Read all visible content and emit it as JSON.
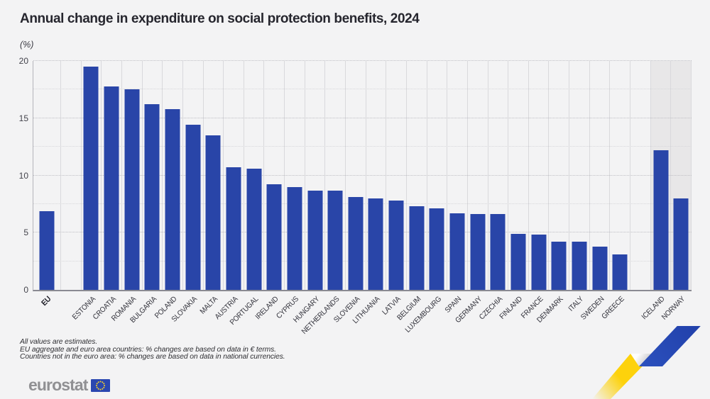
{
  "title": "Annual change in expenditure on social protection benefits, 2024",
  "unit_label": "(%)",
  "footnotes": [
    "All values are estimates.",
    "EU aggregate and euro area countries: % changes are based on data in € terms.",
    "Countries not in the euro area: % changes are based on data in national currencies."
  ],
  "logo": {
    "text": "eurostat"
  },
  "brand": {
    "accent_blue": "#2447ae",
    "accent_yellow": "#fdd20c"
  },
  "chart_data": {
    "type": "bar",
    "title": "Annual change in expenditure on social protection benefits, 2024",
    "xlabel": "",
    "ylabel": "(%)",
    "ylim": [
      0,
      20
    ],
    "yticks": [
      0,
      5,
      10,
      15,
      20
    ],
    "minor_grid_step": 2.5,
    "grid": "dotted horizontal lines every 2.5, light vertical separators per category",
    "legend": "none",
    "bar_color": "#2945a8",
    "highlight_band_color": "#e8e7e8",
    "series": [
      {
        "name": "EU",
        "value": 6.9,
        "group": "eu-aggregate",
        "highlighted": false
      },
      {
        "name": "ESTONIA",
        "value": 19.5,
        "group": "eu-member",
        "highlighted": false
      },
      {
        "name": "CROATIA",
        "value": 17.8,
        "group": "eu-member",
        "highlighted": false
      },
      {
        "name": "ROMANIA",
        "value": 17.5,
        "group": "eu-member",
        "highlighted": false
      },
      {
        "name": "BULGARIA",
        "value": 16.2,
        "group": "eu-member",
        "highlighted": false
      },
      {
        "name": "POLAND",
        "value": 15.8,
        "group": "eu-member",
        "highlighted": false
      },
      {
        "name": "SLOVAKIA",
        "value": 14.4,
        "group": "eu-member",
        "highlighted": false
      },
      {
        "name": "MALTA",
        "value": 13.5,
        "group": "eu-member",
        "highlighted": false
      },
      {
        "name": "AUSTRIA",
        "value": 10.7,
        "group": "eu-member",
        "highlighted": false
      },
      {
        "name": "PORTUGAL",
        "value": 10.6,
        "group": "eu-member",
        "highlighted": false
      },
      {
        "name": "IRELAND",
        "value": 9.2,
        "group": "eu-member",
        "highlighted": false
      },
      {
        "name": "CYPRUS",
        "value": 9.0,
        "group": "eu-member",
        "highlighted": false
      },
      {
        "name": "HUNGARY",
        "value": 8.7,
        "group": "eu-member",
        "highlighted": false
      },
      {
        "name": "NETHERLANDS",
        "value": 8.7,
        "group": "eu-member",
        "highlighted": false
      },
      {
        "name": "SLOVENIA",
        "value": 8.1,
        "group": "eu-member",
        "highlighted": false
      },
      {
        "name": "LITHUANIA",
        "value": 8.0,
        "group": "eu-member",
        "highlighted": false
      },
      {
        "name": "LATVIA",
        "value": 7.8,
        "group": "eu-member",
        "highlighted": false
      },
      {
        "name": "BELGIUM",
        "value": 7.3,
        "group": "eu-member",
        "highlighted": false
      },
      {
        "name": "LUXEMBOURG",
        "value": 7.1,
        "group": "eu-member",
        "highlighted": false
      },
      {
        "name": "SPAIN",
        "value": 6.7,
        "group": "eu-member",
        "highlighted": false
      },
      {
        "name": "GERMANY",
        "value": 6.6,
        "group": "eu-member",
        "highlighted": false
      },
      {
        "name": "CZECHIA",
        "value": 6.6,
        "group": "eu-member",
        "highlighted": false
      },
      {
        "name": "FINLAND",
        "value": 4.9,
        "group": "eu-member",
        "highlighted": false
      },
      {
        "name": "FRANCE",
        "value": 4.8,
        "group": "eu-member",
        "highlighted": false
      },
      {
        "name": "DENMARK",
        "value": 4.2,
        "group": "eu-member",
        "highlighted": false
      },
      {
        "name": "ITALY",
        "value": 4.2,
        "group": "eu-member",
        "highlighted": false
      },
      {
        "name": "SWEDEN",
        "value": 3.8,
        "group": "eu-member",
        "highlighted": false
      },
      {
        "name": "GREECE",
        "value": 3.1,
        "group": "eu-member",
        "highlighted": false
      },
      {
        "name": "ICELAND",
        "value": 12.2,
        "group": "efta",
        "highlighted": true
      },
      {
        "name": "NORWAY",
        "value": 8.0,
        "group": "efta",
        "highlighted": true
      }
    ]
  }
}
